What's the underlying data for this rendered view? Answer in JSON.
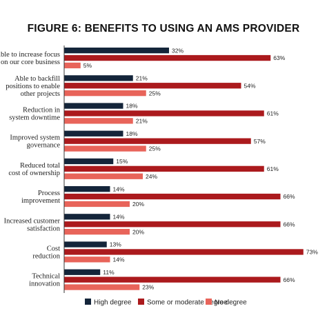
{
  "chart_data": {
    "type": "bar",
    "orientation": "horizontal",
    "title": "FIGURE 6: BENEFITS TO USING AN AMS PROVIDER",
    "categories": [
      [
        "Able to increase focus",
        "on our core business"
      ],
      [
        "Able to backfill",
        "positions to enable",
        "other projects"
      ],
      [
        "Reduction in",
        "system downtime"
      ],
      [
        "Improved system",
        "governance"
      ],
      [
        "Reduced total",
        "cost of ownership"
      ],
      [
        "Process",
        "improvement"
      ],
      [
        "Increased customer",
        "satisfaction"
      ],
      [
        "Cost",
        "reduction"
      ],
      [
        "Technical",
        "innovation"
      ]
    ],
    "series": [
      {
        "name": "High degree",
        "color": "#14253a",
        "values": [
          32,
          21,
          18,
          18,
          15,
          14,
          14,
          13,
          11
        ]
      },
      {
        "name": "Some or moderate degree",
        "color": "#ab1a1d",
        "values": [
          63,
          54,
          61,
          57,
          61,
          66,
          66,
          73,
          66
        ]
      },
      {
        "name": "No degree",
        "color": "#e8645a",
        "values": [
          5,
          25,
          21,
          25,
          24,
          20,
          20,
          14,
          23
        ]
      }
    ],
    "value_suffix": "%",
    "xlim": [
      0,
      73
    ],
    "legend_position": "bottom-center",
    "grid": false
  }
}
